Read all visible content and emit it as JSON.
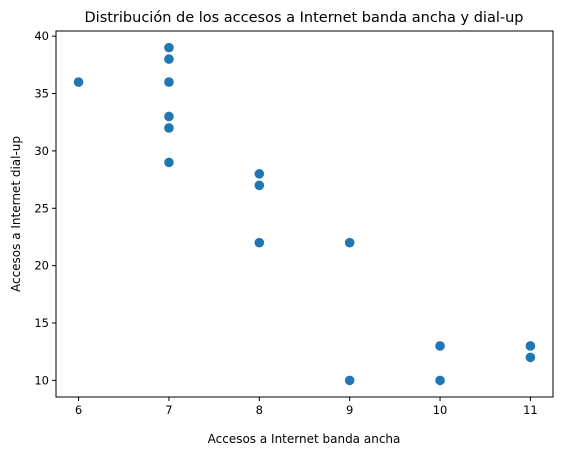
{
  "chart_data": {
    "type": "scatter",
    "title": "Distribución de los accesos a Internet banda ancha y dial-up",
    "xlabel": "Accesos a Internet banda ancha",
    "ylabel": "Accesos a Internet dial-up",
    "xlim": [
      5.75,
      11.25
    ],
    "ylim": [
      8.55,
      40.45
    ],
    "xticks": [
      6,
      7,
      8,
      9,
      10,
      11
    ],
    "yticks": [
      10,
      15,
      20,
      25,
      30,
      35,
      40
    ],
    "grid": false,
    "marker_color": "#1f77b4",
    "points": [
      {
        "x": 6,
        "y": 36
      },
      {
        "x": 7,
        "y": 39
      },
      {
        "x": 7,
        "y": 38
      },
      {
        "x": 7,
        "y": 36
      },
      {
        "x": 7,
        "y": 33
      },
      {
        "x": 7,
        "y": 32
      },
      {
        "x": 7,
        "y": 29
      },
      {
        "x": 8,
        "y": 28
      },
      {
        "x": 8,
        "y": 27
      },
      {
        "x": 8,
        "y": 22
      },
      {
        "x": 9,
        "y": 22
      },
      {
        "x": 9,
        "y": 10
      },
      {
        "x": 10,
        "y": 13
      },
      {
        "x": 10,
        "y": 10
      },
      {
        "x": 11,
        "y": 13
      },
      {
        "x": 11,
        "y": 12
      }
    ]
  }
}
